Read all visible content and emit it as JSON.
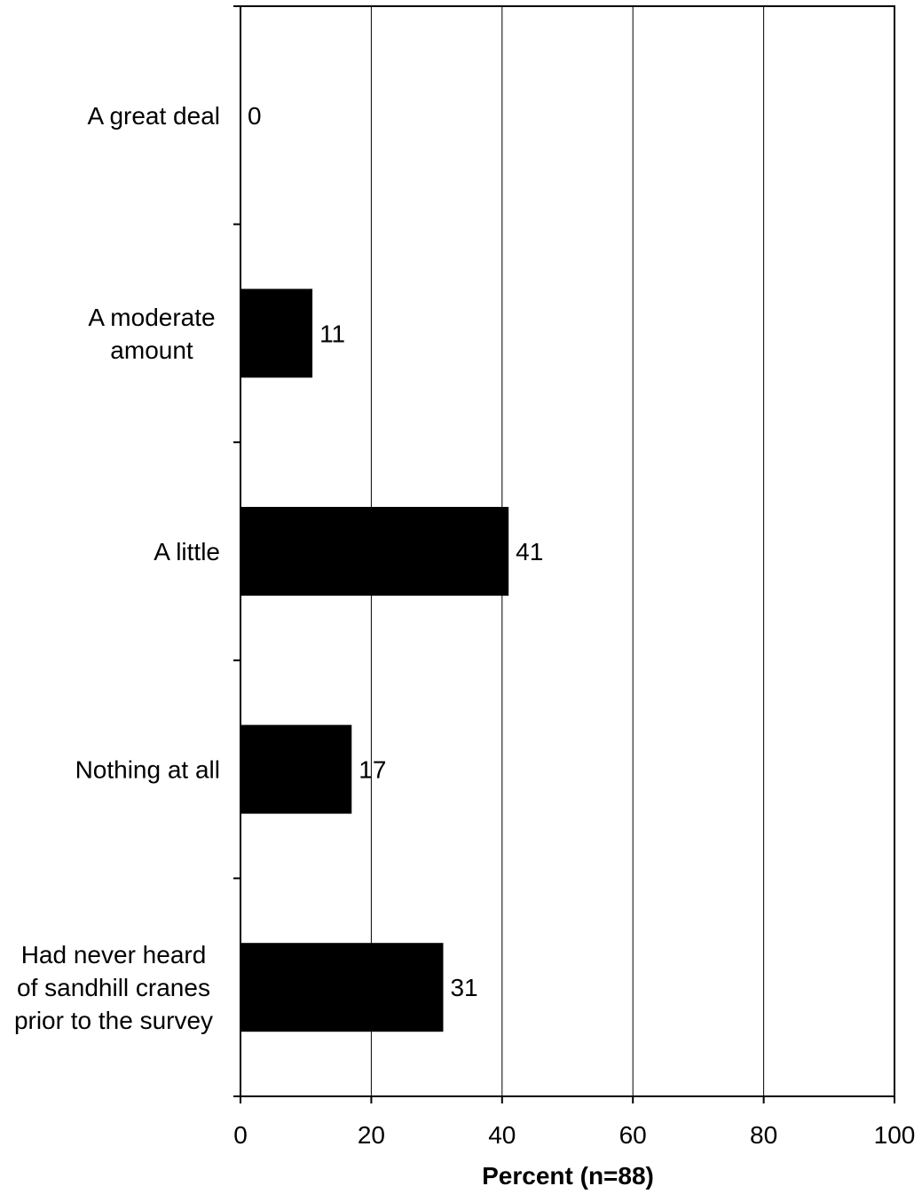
{
  "chart_data": {
    "type": "bar",
    "orientation": "horizontal",
    "categories": [
      [
        "A great deal"
      ],
      [
        "A moderate",
        "amount"
      ],
      [
        "A little"
      ],
      [
        "Nothing at all"
      ],
      [
        "Had never heard",
        "of sandhill cranes",
        "prior to the survey"
      ]
    ],
    "values": [
      0,
      11,
      41,
      17,
      31
    ],
    "value_labels": [
      "0",
      "11",
      "41",
      "17",
      "31"
    ],
    "title": "",
    "xlabel": "Percent (n=88)",
    "ylabel": "",
    "xlim": [
      0,
      100
    ],
    "xticks": [
      0,
      20,
      40,
      60,
      80,
      100
    ],
    "xtick_labels": [
      "0",
      "20",
      "40",
      "60",
      "80",
      "100"
    ],
    "grid": "vertical",
    "legend": "none",
    "bar_color": "#000000"
  }
}
